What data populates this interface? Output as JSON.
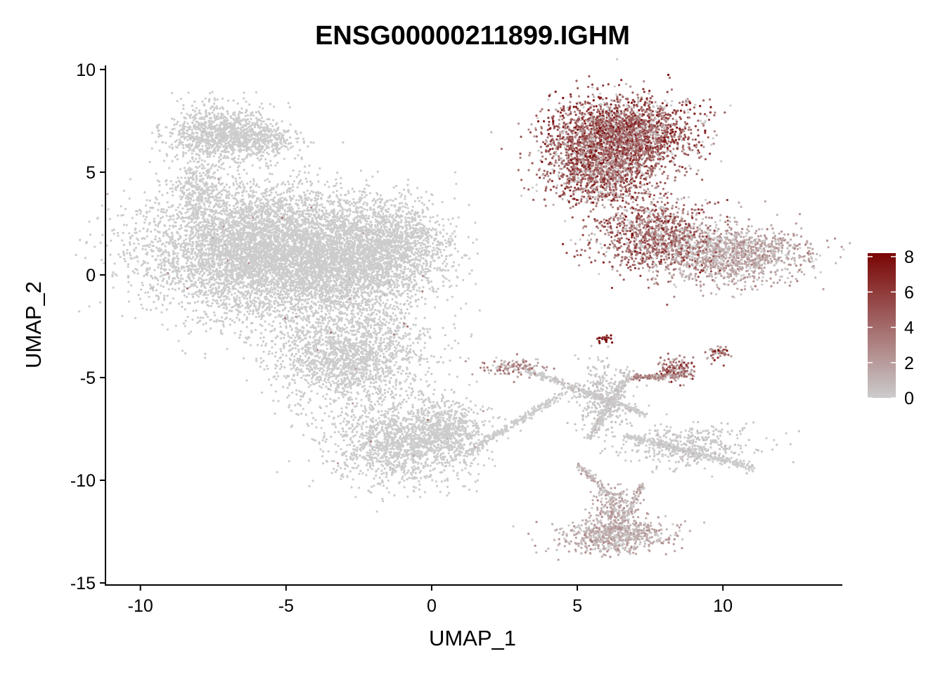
{
  "chart_data": {
    "type": "scatter",
    "title": "ENSG00000211899.IGHM",
    "xlabel": "UMAP_1",
    "ylabel": "UMAP_2",
    "xlim": [
      -11.2,
      14.1
    ],
    "ylim": [
      -15.1,
      10.2
    ],
    "xticks": [
      -10,
      -5,
      0,
      5,
      10
    ],
    "yticks": [
      -15,
      -10,
      -5,
      0,
      5,
      10
    ],
    "grid": false,
    "color_scale": {
      "min": 0,
      "max": 8.2,
      "ticks": [
        0,
        2,
        4,
        6,
        8
      ],
      "low_color": "#cccccc",
      "high_color": "#7a0505",
      "legend_position": "right"
    },
    "clusters": [
      {
        "x": -6.0,
        "y": 1.2,
        "sx": 1.9,
        "sy": 1.6,
        "n": 5200,
        "expr": 0.0
      },
      {
        "x": -3.0,
        "y": 0.5,
        "sx": 1.5,
        "sy": 1.4,
        "n": 2600,
        "expr": 0.0
      },
      {
        "x": -1.3,
        "y": 1.6,
        "sx": 1.0,
        "sy": 1.1,
        "n": 1000,
        "expr": 0.0
      },
      {
        "x": -2.8,
        "y": -4.0,
        "sx": 1.3,
        "sy": 1.2,
        "n": 1700,
        "expr": 0.0
      },
      {
        "x": -7.4,
        "y": 6.9,
        "sx": 0.9,
        "sy": 0.7,
        "n": 900,
        "expr": 0.0
      },
      {
        "x": -6.0,
        "y": 6.7,
        "sx": 0.7,
        "sy": 0.4,
        "n": 400,
        "expr": 0.0
      },
      {
        "x": -8.0,
        "y": 4.0,
        "sx": 0.5,
        "sy": 0.8,
        "n": 300,
        "expr": 0.0
      },
      {
        "x": -1.0,
        "y": -8.2,
        "sx": 1.3,
        "sy": 1.0,
        "n": 1500,
        "expr": 0.0
      },
      {
        "x": 0.6,
        "y": -7.4,
        "sx": 0.6,
        "sy": 0.6,
        "n": 400,
        "expr": 0.0
      },
      {
        "x": 6.5,
        "y": 6.9,
        "sx": 1.2,
        "sy": 0.9,
        "n": 2300,
        "expr": 4.6
      },
      {
        "x": 5.8,
        "y": 5.1,
        "sx": 1.0,
        "sy": 0.9,
        "n": 1200,
        "expr": 4.2
      },
      {
        "x": 7.6,
        "y": 1.9,
        "sx": 1.0,
        "sy": 0.9,
        "n": 1000,
        "expr": 3.9
      },
      {
        "x": 10.3,
        "y": 1.0,
        "sx": 1.3,
        "sy": 0.7,
        "n": 1300,
        "expr": 1.6
      },
      {
        "x": 6.3,
        "y": -12.7,
        "sx": 0.9,
        "sy": 0.4,
        "n": 700,
        "expr": 1.4
      },
      {
        "x": 6.3,
        "y": -11.3,
        "sx": 0.4,
        "sy": 0.5,
        "n": 200,
        "expr": 1.3
      },
      {
        "x": 8.8,
        "y": -8.3,
        "sx": 1.2,
        "sy": 0.5,
        "n": 400,
        "expr": 0.1
      },
      {
        "x": 5.9,
        "y": -6.0,
        "sx": 0.5,
        "sy": 0.9,
        "n": 300,
        "expr": 0.1
      },
      {
        "x": 2.8,
        "y": -4.5,
        "sx": 0.5,
        "sy": 0.2,
        "n": 120,
        "expr": 2.6
      },
      {
        "x": 8.4,
        "y": -4.6,
        "sx": 0.3,
        "sy": 0.3,
        "n": 150,
        "expr": 3.8
      },
      {
        "x": 9.8,
        "y": -3.8,
        "sx": 0.2,
        "sy": 0.2,
        "n": 50,
        "expr": 4.0
      },
      {
        "x": 5.9,
        "y": -3.1,
        "sx": 0.15,
        "sy": 0.1,
        "n": 20,
        "expr": 7.8
      }
    ],
    "trajectories": [
      {
        "x1": 0.8,
        "y1": -9.0,
        "x2": 4.5,
        "y2": -5.8,
        "n": 220,
        "expr": 0.0
      },
      {
        "x1": 3.2,
        "y1": -4.6,
        "x2": 7.3,
        "y2": -6.8,
        "n": 260,
        "expr": 0.1
      },
      {
        "x1": 5.4,
        "y1": -8.0,
        "x2": 6.8,
        "y2": -4.8,
        "n": 200,
        "expr": 0.1
      },
      {
        "x1": 7.0,
        "y1": -5.0,
        "x2": 8.7,
        "y2": -4.9,
        "n": 120,
        "expr": 3.0
      },
      {
        "x1": 6.6,
        "y1": -7.8,
        "x2": 11.0,
        "y2": -9.4,
        "n": 320,
        "expr": 0.0
      },
      {
        "x1": 5.0,
        "y1": -9.2,
        "x2": 6.3,
        "y2": -11.0,
        "n": 90,
        "expr": 1.0
      },
      {
        "x1": 7.2,
        "y1": -10.2,
        "x2": 6.6,
        "y2": -12.0,
        "n": 60,
        "expr": 1.0
      }
    ]
  }
}
